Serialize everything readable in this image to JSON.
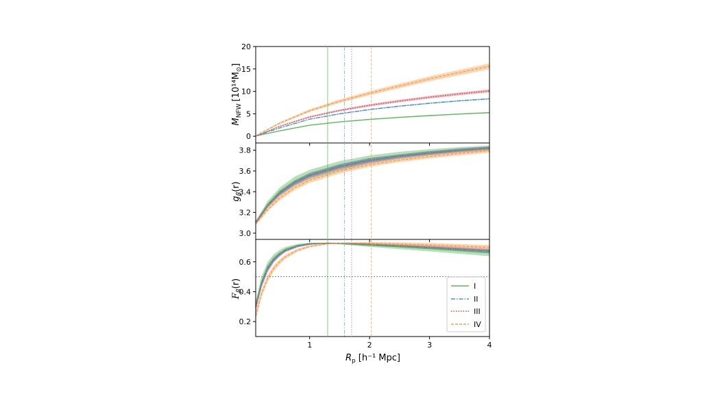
{
  "chart_data": {
    "type": "line",
    "xlabel_main": "R",
    "xlabel_sub": "p",
    "xlabel_unit": "[h⁻¹ Mpc]",
    "xlim": [
      0.1,
      4.0
    ],
    "x_ticks": [
      1,
      2,
      3,
      4
    ],
    "x_tick_labels": [
      "1",
      "2",
      "3",
      "4"
    ],
    "vertical_markers": [
      {
        "series": "I",
        "x": 1.3,
        "color": "#5cb85c"
      },
      {
        "series": "II",
        "x": 1.58,
        "color": "#6baed6"
      },
      {
        "series": "III",
        "x": 1.7,
        "color": "#9467bd"
      },
      {
        "series": "IV",
        "x": 2.03,
        "color": "#f0a050"
      }
    ],
    "legend": [
      {
        "label": "I",
        "color": "#5cb85c",
        "dash": "solid"
      },
      {
        "label": "II",
        "color": "#4a90c8",
        "dash": "dashdot"
      },
      {
        "label": "III",
        "color": "#c0504d",
        "dash": "dotted"
      },
      {
        "label": "IV",
        "color": "#f0a050",
        "dash": "dashed"
      }
    ],
    "panels": [
      {
        "id": "mass",
        "ylabel": "M_NFW [10¹⁴ M⊙]",
        "ylabel_main": "M",
        "ylabel_sub": "NFW",
        "ylabel_unit": "[10¹⁴M",
        "ylabel_sun": "⊙",
        "ylabel_close": "]",
        "ylim": [
          -1.5,
          20
        ],
        "y_ticks": [
          0,
          5,
          10,
          15,
          20
        ],
        "y_tick_labels": [
          "0",
          "5",
          "10",
          "15",
          "20"
        ],
        "series": [
          {
            "name": "I",
            "color": "#5cb85c",
            "band": "#5cb85c",
            "x": [
              0.1,
              0.5,
              1.0,
              1.5,
              2.0,
              2.5,
              3.0,
              3.5,
              4.0
            ],
            "y": [
              0.05,
              1.2,
              2.45,
              3.2,
              3.75,
              4.2,
              4.6,
              4.95,
              5.25
            ],
            "err": [
              0.02,
              0.05,
              0.08,
              0.09,
              0.1,
              0.1,
              0.11,
              0.11,
              0.12
            ]
          },
          {
            "name": "II",
            "color": "#4a90c8",
            "band": "#4a90c8",
            "x": [
              0.1,
              0.5,
              1.0,
              1.5,
              2.0,
              2.5,
              3.0,
              3.5,
              4.0
            ],
            "y": [
              0.06,
              1.85,
              3.8,
              5.0,
              5.95,
              6.7,
              7.35,
              7.9,
              8.35
            ],
            "err": [
              0.02,
              0.08,
              0.1,
              0.12,
              0.13,
              0.14,
              0.15,
              0.15,
              0.16
            ]
          },
          {
            "name": "III",
            "color": "#c0504d",
            "band": "#e05a6a",
            "x": [
              0.1,
              0.5,
              1.0,
              1.5,
              2.0,
              2.5,
              3.0,
              3.5,
              4.0
            ],
            "y": [
              0.07,
              2.2,
              4.3,
              5.75,
              6.9,
              7.85,
              8.7,
              9.45,
              10.1
            ],
            "err": [
              0.03,
              0.12,
              0.18,
              0.22,
              0.25,
              0.27,
              0.29,
              0.3,
              0.32
            ]
          },
          {
            "name": "IV",
            "color": "#f0a050",
            "band": "#f5a24e",
            "x": [
              0.1,
              0.5,
              1.0,
              1.5,
              2.0,
              2.5,
              3.0,
              3.5,
              4.0
            ],
            "y": [
              0.1,
              2.9,
              5.7,
              7.8,
              9.6,
              11.2,
              12.8,
              14.2,
              15.6
            ],
            "err": [
              0.05,
              0.2,
              0.3,
              0.38,
              0.45,
              0.5,
              0.55,
              0.6,
              0.65
            ]
          }
        ]
      },
      {
        "id": "g",
        "ylabel": "g_β(r)",
        "ylabel_main": "g",
        "ylabel_sub": "β",
        "ylabel_unit": "(r)",
        "ylim": [
          2.94,
          3.87
        ],
        "y_ticks": [
          3.0,
          3.2,
          3.4,
          3.6,
          3.8
        ],
        "y_tick_labels": [
          "3.0",
          "3.2",
          "3.4",
          "3.6",
          "3.8"
        ],
        "series": [
          {
            "name": "I",
            "color": "#5cb85c",
            "band": "#5cb85c",
            "x": [
              0.1,
              0.3,
              0.5,
              0.75,
              1.0,
              1.5,
              2.0,
              2.5,
              3.0,
              3.5,
              4.0
            ],
            "y": [
              3.1,
              3.28,
              3.4,
              3.5,
              3.565,
              3.65,
              3.71,
              3.75,
              3.78,
              3.805,
              3.825
            ],
            "err": [
              0.02,
              0.03,
              0.04,
              0.045,
              0.045,
              0.045,
              0.04,
              0.035,
              0.03,
              0.025,
              0.02
            ]
          },
          {
            "name": "II",
            "color": "#4a90c8",
            "band": "#4a90c8",
            "x": [
              0.1,
              0.3,
              0.5,
              0.75,
              1.0,
              1.5,
              2.0,
              2.5,
              3.0,
              3.5,
              4.0
            ],
            "y": [
              3.1,
              3.27,
              3.39,
              3.49,
              3.56,
              3.645,
              3.705,
              3.745,
              3.775,
              3.8,
              3.82
            ],
            "err": [
              0.01,
              0.015,
              0.02,
              0.02,
              0.02,
              0.02,
              0.02,
              0.015,
              0.015,
              0.015,
              0.015
            ]
          },
          {
            "name": "III",
            "color": "#c0504d",
            "band": "#9467bd",
            "x": [
              0.1,
              0.3,
              0.5,
              0.75,
              1.0,
              1.5,
              2.0,
              2.5,
              3.0,
              3.5,
              4.0
            ],
            "y": [
              3.1,
              3.265,
              3.385,
              3.485,
              3.555,
              3.64,
              3.7,
              3.74,
              3.772,
              3.797,
              3.818
            ],
            "err": [
              0.015,
              0.02,
              0.025,
              0.025,
              0.025,
              0.025,
              0.025,
              0.02,
              0.02,
              0.02,
              0.02
            ]
          },
          {
            "name": "IV",
            "color": "#f0a050",
            "band": "#f5a24e",
            "x": [
              0.1,
              0.3,
              0.5,
              0.75,
              1.0,
              1.5,
              2.0,
              2.5,
              3.0,
              3.5,
              4.0
            ],
            "y": [
              3.09,
              3.23,
              3.34,
              3.44,
              3.51,
              3.6,
              3.66,
              3.705,
              3.74,
              3.77,
              3.795
            ],
            "err": [
              0.015,
              0.02,
              0.025,
              0.025,
              0.025,
              0.025,
              0.02,
              0.02,
              0.02,
              0.02,
              0.02
            ]
          }
        ]
      },
      {
        "id": "F",
        "ylabel": "F_β(r)",
        "ylabel_main": "F",
        "ylabel_sub": "β",
        "ylabel_unit": "(r)",
        "ylim": [
          0.1,
          0.75
        ],
        "y_ticks": [
          0.2,
          0.4,
          0.6
        ],
        "y_tick_labels": [
          "0.2",
          "0.4",
          "0.6"
        ],
        "hline": 0.5,
        "series": [
          {
            "name": "I",
            "color": "#5cb85c",
            "band": "#5cb85c",
            "x": [
              0.1,
              0.2,
              0.3,
              0.4,
              0.5,
              0.6,
              0.8,
              1.0,
              1.3,
              1.6,
              2.0,
              2.5,
              3.0,
              3.5,
              4.0
            ],
            "y": [
              0.31,
              0.47,
              0.57,
              0.625,
              0.66,
              0.685,
              0.71,
              0.722,
              0.725,
              0.72,
              0.71,
              0.7,
              0.688,
              0.674,
              0.66
            ],
            "err": [
              0.03,
              0.035,
              0.03,
              0.025,
              0.02,
              0.015,
              0.01,
              0.006,
              0.002,
              0.006,
              0.01,
              0.015,
              0.018,
              0.02,
              0.022
            ]
          },
          {
            "name": "II",
            "color": "#4a90c8",
            "band": "#4a90c8",
            "x": [
              0.1,
              0.2,
              0.3,
              0.4,
              0.5,
              0.6,
              0.8,
              1.0,
              1.3,
              1.6,
              2.0,
              2.5,
              3.0,
              3.5,
              4.0
            ],
            "y": [
              0.3,
              0.46,
              0.56,
              0.615,
              0.652,
              0.678,
              0.706,
              0.719,
              0.725,
              0.723,
              0.716,
              0.705,
              0.694,
              0.682,
              0.67
            ],
            "err": [
              0.015,
              0.015,
              0.015,
              0.012,
              0.01,
              0.008,
              0.006,
              0.004,
              0.002,
              0.003,
              0.005,
              0.008,
              0.009,
              0.01,
              0.011
            ]
          },
          {
            "name": "III",
            "color": "#c0504d",
            "band": "#9467bd",
            "x": [
              0.1,
              0.2,
              0.3,
              0.4,
              0.5,
              0.6,
              0.8,
              1.0,
              1.3,
              1.6,
              2.0,
              2.5,
              3.0,
              3.5,
              4.0
            ],
            "y": [
              0.29,
              0.45,
              0.55,
              0.61,
              0.648,
              0.675,
              0.704,
              0.718,
              0.725,
              0.724,
              0.718,
              0.708,
              0.698,
              0.687,
              0.676
            ],
            "err": [
              0.02,
              0.02,
              0.02,
              0.016,
              0.013,
              0.01,
              0.007,
              0.005,
              0.002,
              0.004,
              0.007,
              0.01,
              0.012,
              0.013,
              0.014
            ]
          },
          {
            "name": "IV",
            "color": "#f0a050",
            "band": "#f5a24e",
            "x": [
              0.1,
              0.2,
              0.3,
              0.4,
              0.5,
              0.6,
              0.8,
              1.0,
              1.3,
              1.6,
              2.0,
              2.5,
              3.0,
              3.5,
              4.0
            ],
            "y": [
              0.24,
              0.39,
              0.49,
              0.555,
              0.6,
              0.635,
              0.678,
              0.703,
              0.72,
              0.726,
              0.725,
              0.72,
              0.713,
              0.705,
              0.697
            ],
            "err": [
              0.025,
              0.025,
              0.022,
              0.02,
              0.017,
              0.014,
              0.01,
              0.007,
              0.003,
              0.004,
              0.008,
              0.011,
              0.013,
              0.014,
              0.015
            ]
          }
        ]
      }
    ]
  }
}
